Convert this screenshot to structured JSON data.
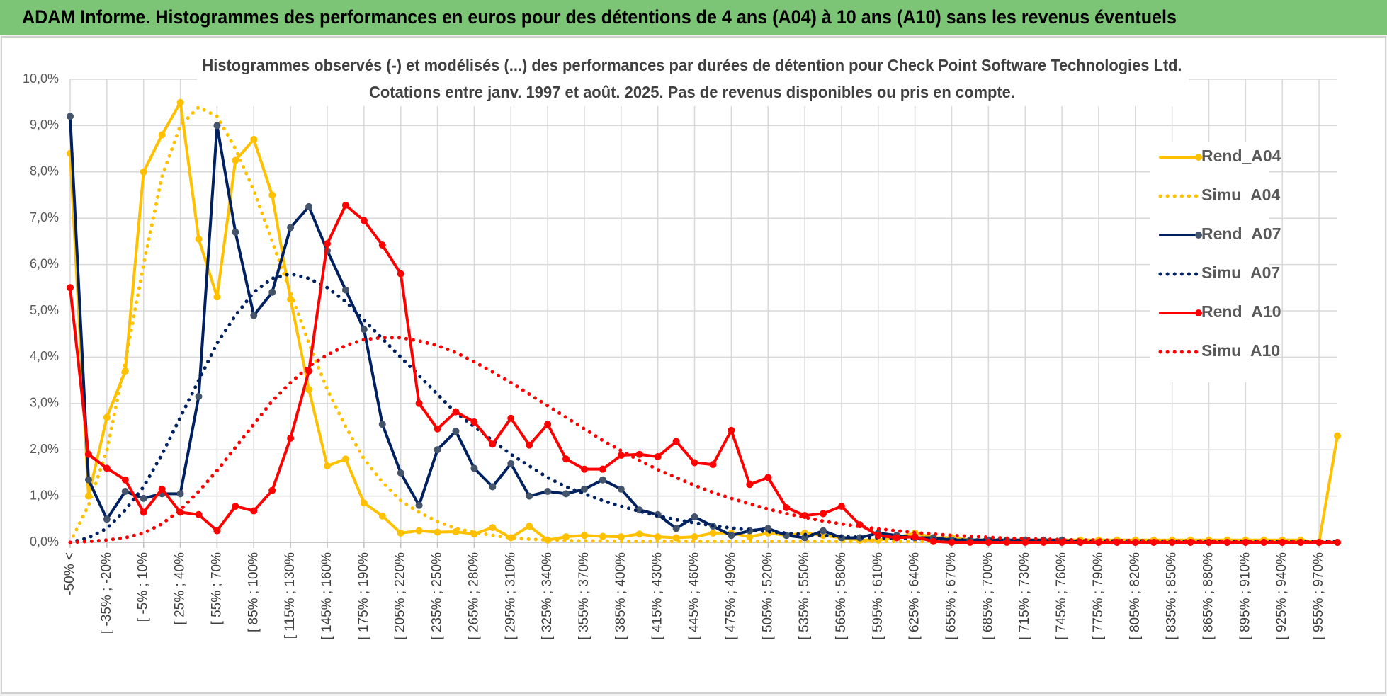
{
  "chart_data": {
    "type": "line",
    "title": "ADAM Informe. Histogrammes des performances en euros pour des détentions de 4 ans (A04) à 10 ans (A10) sans les revenus éventuels",
    "subtitle": [
      "Histogrammes observés (-) et modélisés (...) des performances par durées de détention pour Check Point Software Technologies Ltd.",
      "Cotations entre janv. 1997 et août. 2025. Pas de revenus disponibles ou pris en compte."
    ],
    "categories": [
      "-50% <",
      null,
      "[ -35% ; -20%",
      null,
      "[ -5% ; 10%",
      null,
      "[ 25% ; 40%",
      null,
      "[ 55% ; 70%",
      null,
      "[ 85% ; 100%",
      null,
      "[ 115% ; 130%",
      null,
      "[ 145% ; 160%",
      null,
      "[ 175% ; 190%",
      null,
      "[ 205% ; 220%",
      null,
      "[ 235% ; 250%",
      null,
      "[ 265% ; 280%",
      null,
      "[ 295% ; 310%",
      null,
      "[ 325% ; 340%",
      null,
      "[ 355% ; 370%",
      null,
      "[ 385% ; 400%",
      null,
      "[ 415% ; 430%",
      null,
      "[ 445% ; 460%",
      null,
      "[ 475% ; 490%",
      null,
      "[ 505% ; 520%",
      null,
      "[ 535% ; 550%",
      null,
      "[ 565% ; 580%",
      null,
      "[ 595% ; 610%",
      null,
      "[ 625% ; 640%",
      null,
      "[ 655% ; 670%",
      null,
      "[ 685% ; 700%",
      null,
      "[ 715% ; 730%",
      null,
      "[ 745% ; 760%",
      null,
      "[ 775% ; 790%",
      null,
      "[ 805% ; 820%",
      null,
      "[ 835% ; 850%",
      null,
      "[ 865% ; 880%",
      null,
      "[ 895% ; 910%",
      null,
      "[ 925% ; 940%",
      null,
      "[ 955% ; 970%",
      null
    ],
    "ylim": [
      0,
      10
    ],
    "yticks": [
      {
        "value": 0,
        "label": "0,0%"
      },
      {
        "value": 1,
        "label": "1,0%"
      },
      {
        "value": 2,
        "label": "2,0%"
      },
      {
        "value": 3,
        "label": "3,0%"
      },
      {
        "value": 4,
        "label": "4,0%"
      },
      {
        "value": 5,
        "label": "5,0%"
      },
      {
        "value": 6,
        "label": "6,0%"
      },
      {
        "value": 7,
        "label": "7,0%"
      },
      {
        "value": 8,
        "label": "8,0%"
      },
      {
        "value": 9,
        "label": "9,0%"
      },
      {
        "value": 10,
        "label": "10,0%"
      }
    ],
    "grid": true,
    "legend": "right",
    "series": [
      {
        "name": "Rend_A04",
        "color": "#ffc000",
        "dotted": false,
        "marker": true,
        "marker_color": "#ffc000",
        "values": [
          8.4,
          1.0,
          2.7,
          3.7,
          8.0,
          8.8,
          9.5,
          6.55,
          5.3,
          8.25,
          8.7,
          7.5,
          5.25,
          3.3,
          1.65,
          1.8,
          0.85,
          0.57,
          0.2,
          0.25,
          0.22,
          0.23,
          0.18,
          0.32,
          0.1,
          0.35,
          0.05,
          0.12,
          0.15,
          0.13,
          0.12,
          0.18,
          0.12,
          0.1,
          0.12,
          0.2,
          0.2,
          0.12,
          0.2,
          0.15,
          0.2,
          0.15,
          0.1,
          0.05,
          0.05,
          0.1,
          0.2,
          0.1,
          0.1,
          0.05,
          0.05,
          0.05,
          0.05,
          0.05,
          0.05,
          0.05,
          0.05,
          0.05,
          0.05,
          0.05,
          0.05,
          0.05,
          0.05,
          0.05,
          0.05,
          0.05,
          0.05,
          0.05,
          0.0,
          2.3
        ]
      },
      {
        "name": "Simu_A04",
        "color": "#ffc000",
        "dotted": true,
        "marker": false,
        "values": [
          0.0,
          0.8,
          2.0,
          3.9,
          6.0,
          7.9,
          9.0,
          9.4,
          9.2,
          8.5,
          7.6,
          6.5,
          5.4,
          4.3,
          3.3,
          2.5,
          1.8,
          1.3,
          0.9,
          0.65,
          0.45,
          0.3,
          0.22,
          0.15,
          0.1,
          0.07,
          0.05,
          0.04,
          0.03,
          0.03,
          0.02,
          0.02,
          0.02,
          0.02,
          0.02,
          0.02,
          0.02,
          0.02,
          0.02,
          0.02,
          0.02,
          0.02,
          0.02,
          0.02,
          0.02,
          0.02,
          0.02,
          0.02,
          0.02,
          0.02,
          0.01,
          0.01,
          0.01,
          0.01,
          0.01,
          0.01,
          0.01,
          0.01,
          0.01,
          0.01,
          0.01,
          0.01,
          0.01,
          0.01,
          0.01,
          0.01,
          0.01,
          0.01,
          0.01,
          0.01
        ]
      },
      {
        "name": "Rend_A07",
        "color": "#002060",
        "dotted": false,
        "marker": true,
        "marker_color": "#44546a",
        "values": [
          9.2,
          1.35,
          0.5,
          1.1,
          0.95,
          1.05,
          1.05,
          3.15,
          9.0,
          6.7,
          4.9,
          5.4,
          6.8,
          7.25,
          6.3,
          5.45,
          4.6,
          2.55,
          1.5,
          0.8,
          2.0,
          2.4,
          1.6,
          1.2,
          1.7,
          1.0,
          1.1,
          1.05,
          1.15,
          1.35,
          1.15,
          0.7,
          0.6,
          0.3,
          0.55,
          0.35,
          0.15,
          0.25,
          0.3,
          0.15,
          0.1,
          0.25,
          0.1,
          0.1,
          0.2,
          0.15,
          0.1,
          0.1,
          0.05,
          0.05,
          0.05,
          0.05,
          0.05,
          0.05,
          0.05,
          0,
          0,
          0,
          0,
          0,
          0,
          0,
          0,
          0,
          0,
          0,
          0,
          0,
          0,
          0
        ]
      },
      {
        "name": "Simu_A07",
        "color": "#002060",
        "dotted": true,
        "marker": false,
        "values": [
          0.0,
          0.1,
          0.3,
          0.7,
          1.2,
          1.9,
          2.7,
          3.5,
          4.3,
          4.9,
          5.4,
          5.7,
          5.8,
          5.7,
          5.5,
          5.2,
          4.8,
          4.4,
          4.0,
          3.6,
          3.2,
          2.8,
          2.5,
          2.2,
          1.9,
          1.65,
          1.4,
          1.2,
          1.05,
          0.9,
          0.78,
          0.67,
          0.57,
          0.49,
          0.42,
          0.36,
          0.31,
          0.27,
          0.23,
          0.2,
          0.17,
          0.15,
          0.13,
          0.11,
          0.1,
          0.09,
          0.08,
          0.07,
          0.06,
          0.05,
          0.05,
          0.05,
          0.04,
          0.04,
          0.04,
          0.03,
          0.03,
          0.03,
          0.03,
          0.03,
          0.02,
          0.02,
          0.02,
          0.02,
          0.02,
          0.02,
          0.02,
          0.02,
          0.02,
          0.02
        ]
      },
      {
        "name": "Rend_A10",
        "color": "#ff0000",
        "dotted": false,
        "marker": true,
        "marker_color": "#ff0000",
        "values": [
          5.5,
          1.9,
          1.6,
          1.35,
          0.65,
          1.15,
          0.65,
          0.6,
          0.25,
          0.78,
          0.68,
          1.12,
          2.25,
          3.7,
          6.45,
          7.28,
          6.95,
          6.42,
          5.8,
          3.0,
          2.45,
          2.82,
          2.6,
          2.12,
          2.68,
          2.1,
          2.55,
          1.8,
          1.58,
          1.58,
          1.88,
          1.9,
          1.85,
          2.18,
          1.72,
          1.68,
          2.42,
          1.25,
          1.4,
          0.75,
          0.58,
          0.62,
          0.78,
          0.38,
          0.15,
          0.1,
          0.12,
          0.02,
          0,
          0,
          0,
          0,
          0,
          0,
          0,
          0,
          0,
          0,
          0,
          0,
          0,
          0,
          0,
          0,
          0,
          0,
          0,
          0,
          0,
          0
        ]
      },
      {
        "name": "Simu_A10",
        "color": "#ff0000",
        "dotted": true,
        "marker": false,
        "values": [
          0.0,
          0.02,
          0.05,
          0.1,
          0.2,
          0.4,
          0.7,
          1.1,
          1.55,
          2.05,
          2.55,
          3.05,
          3.45,
          3.8,
          4.05,
          4.25,
          4.38,
          4.42,
          4.42,
          4.35,
          4.25,
          4.1,
          3.9,
          3.68,
          3.45,
          3.2,
          2.95,
          2.7,
          2.45,
          2.2,
          1.98,
          1.77,
          1.57,
          1.4,
          1.23,
          1.08,
          0.95,
          0.83,
          0.72,
          0.62,
          0.54,
          0.46,
          0.4,
          0.34,
          0.29,
          0.25,
          0.21,
          0.18,
          0.15,
          0.13,
          0.11,
          0.09,
          0.08,
          0.07,
          0.06,
          0.05,
          0.05,
          0.04,
          0.04,
          0.03,
          0.03,
          0.03,
          0.03,
          0.02,
          0.02,
          0.02,
          0.02,
          0.02,
          0.02,
          0.02
        ]
      }
    ]
  }
}
